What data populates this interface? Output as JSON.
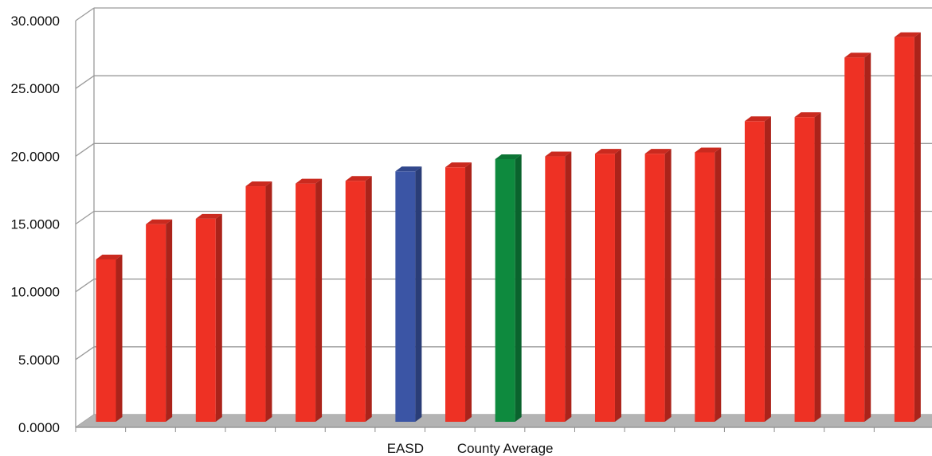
{
  "chart_data": {
    "type": "bar",
    "title": "",
    "xlabel": "",
    "ylabel": "",
    "ylim": [
      0,
      30
    ],
    "yticks": [
      "0.0000",
      "5.0000",
      "10.0000",
      "15.0000",
      "20.0000",
      "25.0000",
      "30.0000"
    ],
    "grid": true,
    "categories": [
      "",
      "",
      "",
      "",
      "",
      "",
      "EASD",
      "",
      "County Average",
      "",
      "",
      "",
      "",
      "",
      "",
      "",
      ""
    ],
    "values": [
      11.8,
      14.4,
      14.8,
      17.2,
      17.4,
      17.6,
      18.3,
      18.6,
      19.2,
      19.4,
      19.6,
      19.6,
      19.7,
      22.0,
      22.3,
      26.7,
      28.2
    ],
    "highlight": {
      "EASD": "#3b55a5",
      "County Average": "#0e8a3e"
    },
    "colors": {
      "bar": "#ee3124",
      "bar_side": "#b81d1d",
      "grid": "#9a9a9a",
      "floor": "#b3b3b3"
    }
  }
}
